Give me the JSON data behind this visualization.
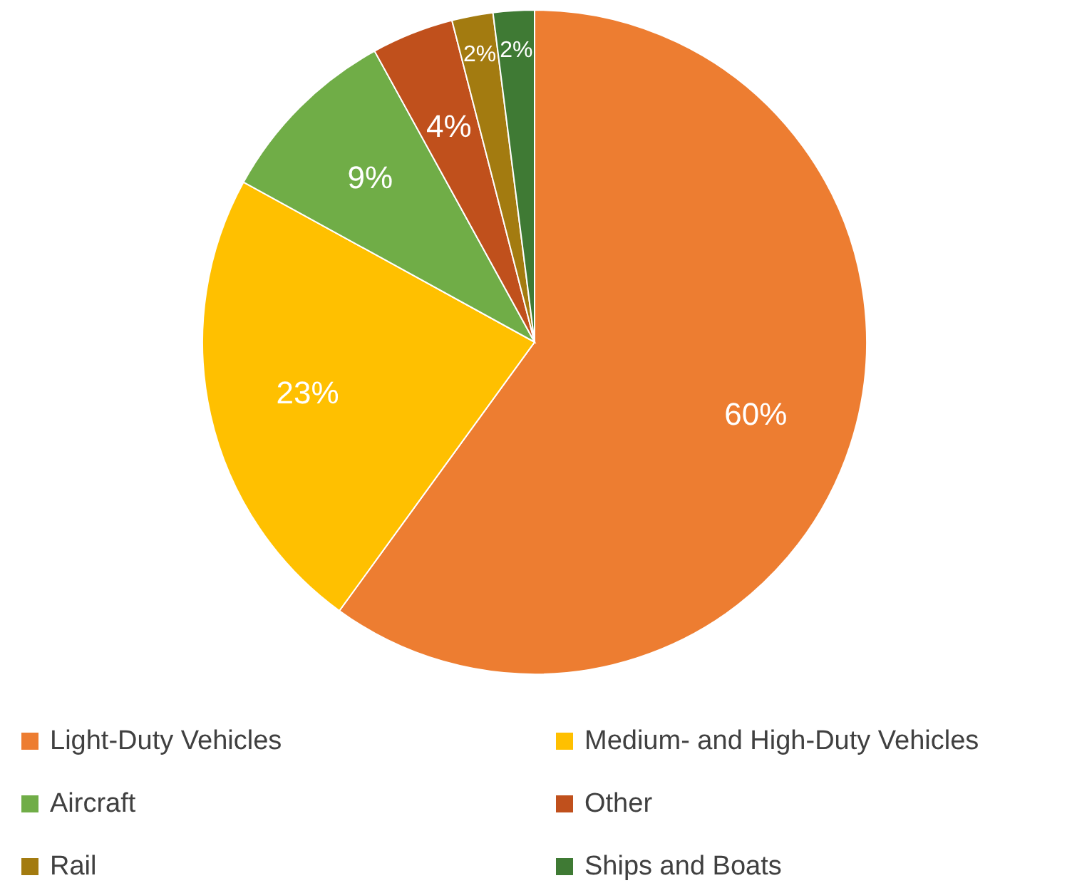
{
  "chart_data": {
    "type": "pie",
    "categories": [
      "Light-Duty Vehicles",
      "Medium- and High-Duty Vehicles",
      "Aircraft",
      "Other",
      "Rail",
      "Ships and Boats"
    ],
    "values": [
      60,
      23,
      9,
      4,
      2,
      2
    ],
    "colors": [
      "#ed7d31",
      "#ffc000",
      "#70ad47",
      "#c0501c",
      "#a37b10",
      "#3f7a34"
    ],
    "value_labels": [
      "60%",
      "23%",
      "9%",
      "4%",
      "2%",
      "2%"
    ],
    "legend": "bottom"
  }
}
